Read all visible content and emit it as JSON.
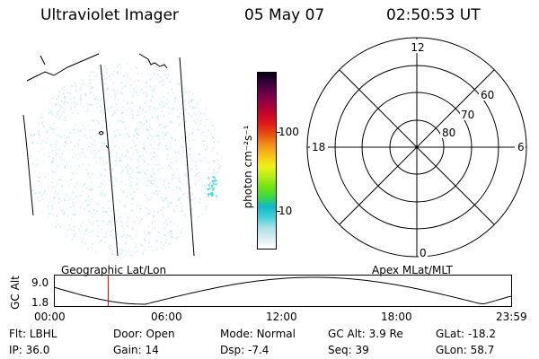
{
  "header": {
    "instrument": "Ultraviolet Imager",
    "date": "05 May 07",
    "time": "02:50:53 UT"
  },
  "colorbar": {
    "unit_label": "photon cm⁻²s⁻¹",
    "ticks": [
      {
        "label": "100",
        "value": 100
      },
      {
        "label": "10",
        "value": 10
      }
    ],
    "colors": [
      "#ffffff",
      "#d8eef0",
      "#a8e0e6",
      "#40d0d8",
      "#10b8c8",
      "#38d848",
      "#70e010",
      "#b8ec18",
      "#f0f018",
      "#f8c018",
      "#f09018",
      "#e85010",
      "#e01818",
      "#c80828",
      "#a00040",
      "#70004c",
      "#380038",
      "#080018"
    ]
  },
  "left_panel": {
    "label": "Geographic Lat/Lon",
    "scatter_color": "#a8e0e6",
    "highlight_color": "#40d8e8"
  },
  "polar_plot": {
    "label": "Apex MLat/MLT",
    "mlt_labels": {
      "top": "12",
      "left": "18",
      "right": "6",
      "bottom": "0"
    },
    "lat_labels": [
      "60",
      "70",
      "80"
    ]
  },
  "altitude_plot": {
    "ylabel": "GC Alt",
    "yticks": [
      "9.0",
      "1.8"
    ],
    "xticks": [
      "00:00",
      "06:00",
      "12:00",
      "18:00",
      "23:59"
    ],
    "current_time_hours": 2.85,
    "marker_color": "#e00000"
  },
  "info": {
    "filter_label": "Flt:",
    "filter_value": "LBHL",
    "door_label": "Door:",
    "door_value": "Open",
    "mode_label": "Mode:",
    "mode_value": "Normal",
    "gc_alt_label": "GC Alt:",
    "gc_alt_value": "3.9 Re",
    "glat_label": "GLat:",
    "glat_value": "-18.2",
    "ip_label": "IP:",
    "ip_value": "36.0",
    "gain_label": "Gain:",
    "gain_value": "14",
    "dsp_label": "Dsp:",
    "dsp_value": "-7.4",
    "seq_label": "Seq:",
    "seq_value": "39",
    "glon_label": "GLon:",
    "glon_value": "58.7"
  }
}
